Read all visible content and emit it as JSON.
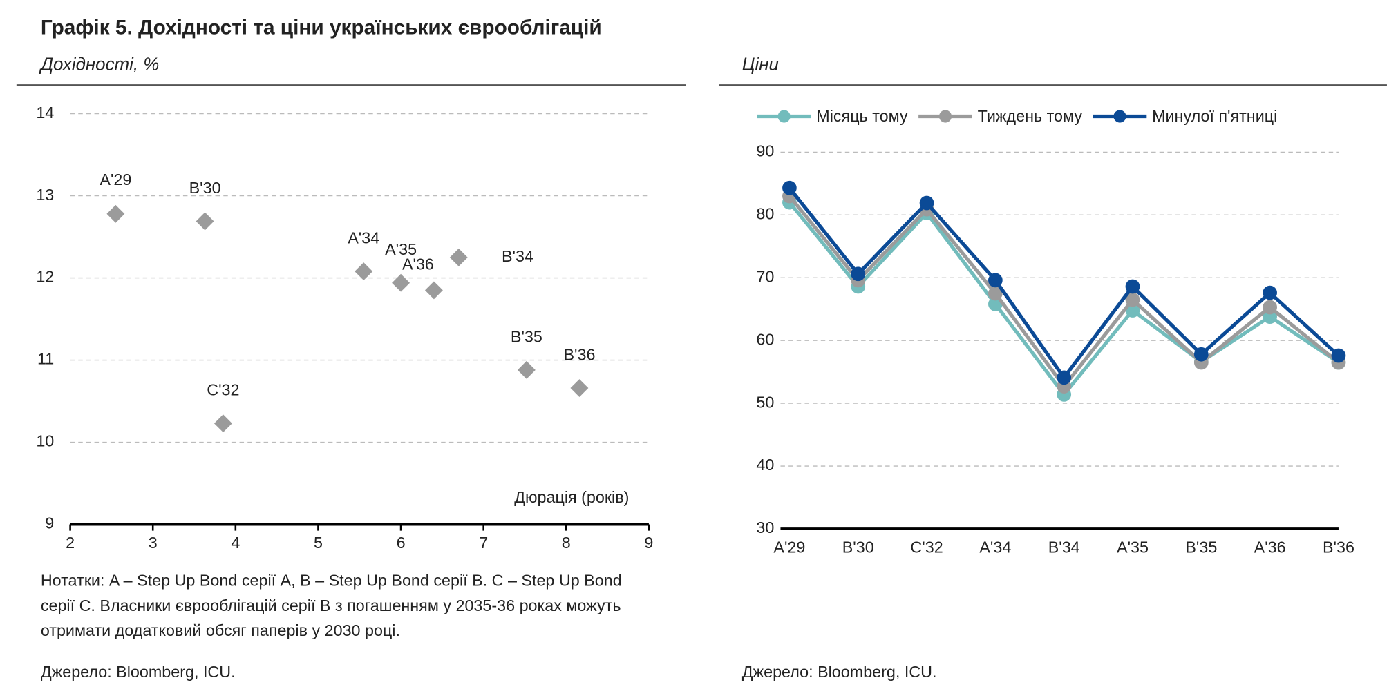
{
  "title": "Графік 5. Дохідності та ціни українських єврооблігацій",
  "note": [
    "Нотатки: A – Step Up Bond серії A, B – Step Up Bond серії B. C – Step Up Bond",
    "серії C. Власники єврооблігацій серії B з погашенням у 2035-36 роках можуть",
    "отримати додатковий обсяг паперів у 2030 році."
  ],
  "chart_data": [
    {
      "type": "scatter",
      "subtitle": "Дохідності, %",
      "x_label": "Дюрація (років)",
      "source": "Джерело: Bloomberg, ICU.",
      "labels": [
        "A'29",
        "B'30",
        "C'32",
        "A'34",
        "A'35",
        "A'36",
        "B'34",
        "B'35",
        "B'36"
      ],
      "x": [
        2.55,
        3.63,
        3.85,
        5.55,
        6.0,
        6.4,
        6.7,
        7.52,
        8.16
      ],
      "values": [
        12.78,
        12.69,
        10.23,
        12.08,
        11.94,
        11.85,
        12.25,
        10.88,
        10.66
      ],
      "color": "#9b9b9b",
      "xlim": [
        2,
        9
      ],
      "xticks": [
        2,
        3,
        4,
        5,
        6,
        7,
        8,
        9
      ],
      "ylim": [
        9,
        14
      ],
      "yticks": [
        9,
        10,
        11,
        12,
        13,
        14
      ],
      "grid": true
    },
    {
      "type": "line",
      "subtitle": "Ціни",
      "source": "Джерело: Bloomberg, ICU.",
      "categories": [
        "A'29",
        "B'30",
        "C'32",
        "A'34",
        "B'34",
        "A'35",
        "B'35",
        "A'36",
        "B'36"
      ],
      "series": [
        {
          "name": "Місяць тому",
          "color": "#72bcbc",
          "values": [
            82.0,
            68.6,
            80.3,
            65.8,
            51.4,
            64.8,
            56.6,
            63.8,
            56.5
          ]
        },
        {
          "name": "Тиждень тому",
          "color": "#9b9b9b",
          "values": [
            83.0,
            69.6,
            80.9,
            67.5,
            52.7,
            66.5,
            56.5,
            65.3,
            56.5
          ]
        },
        {
          "name": "Минулої п'ятниці",
          "color": "#0b4a96",
          "values": [
            84.3,
            70.6,
            81.9,
            69.6,
            54.1,
            68.6,
            57.8,
            67.6,
            57.6
          ]
        }
      ],
      "ylim": [
        30,
        90
      ],
      "yticks": [
        30,
        40,
        50,
        60,
        70,
        80,
        90
      ],
      "grid": true,
      "legend": "top-left"
    }
  ]
}
